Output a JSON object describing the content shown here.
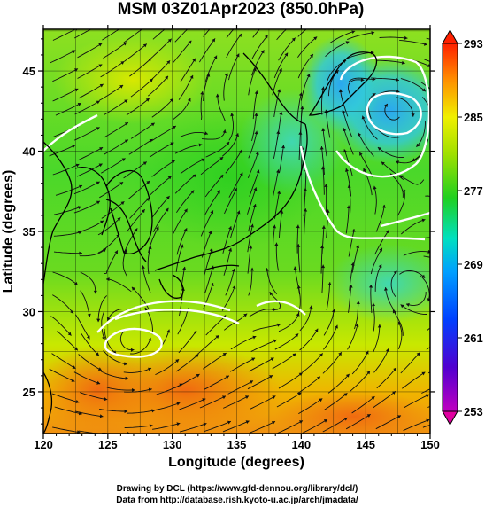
{
  "chart_data": {
    "type": "heatmap",
    "title": "MSM 03Z01Apr2023 (850.0hPa)",
    "xlabel": "Longitude (degrees)",
    "ylabel": "Latitude  (degrees)",
    "xlim": [
      120,
      150
    ],
    "ylim": [
      22.4,
      47.6
    ],
    "x_ticks": [
      "120",
      "125",
      "130",
      "135",
      "140",
      "145",
      "150"
    ],
    "x_tick_values": [
      120,
      125,
      130,
      135,
      140,
      145,
      150
    ],
    "y_ticks": [
      "25",
      "30",
      "35",
      "40",
      "45"
    ],
    "y_tick_values": [
      25,
      30,
      35,
      40,
      45
    ],
    "colorbar": {
      "ticks": [
        "253",
        "261",
        "269",
        "277",
        "285",
        "293"
      ],
      "tick_values": [
        253,
        261,
        269,
        277,
        285,
        293
      ],
      "min": 253,
      "max": 293
    },
    "grid": true,
    "overlay": "streamlines with arrows, white contour lines, coastlines in black",
    "credits": [
      "Drawing by DCL (https://www.gfd-dennou.org/library/dcl/)",
      "Data from http://database.rish.kyoto-u.ac.jp/arch/jmadata/"
    ]
  }
}
